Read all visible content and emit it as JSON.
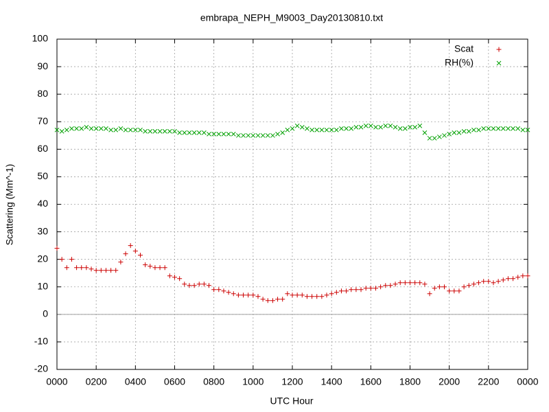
{
  "chart_data": {
    "type": "scatter",
    "title": "embrapa_NEPH_M9003_Day20130810.txt",
    "xlabel": "UTC Hour",
    "ylabel": "Scattering (Mm^-1)",
    "x": [
      0,
      0.25,
      0.5,
      0.75,
      1,
      1.25,
      1.5,
      1.75,
      2,
      2.25,
      2.5,
      2.75,
      3,
      3.25,
      3.5,
      3.75,
      4,
      4.25,
      4.5,
      4.75,
      5,
      5.25,
      5.5,
      5.75,
      6,
      6.25,
      6.5,
      6.75,
      7,
      7.25,
      7.5,
      7.75,
      8,
      8.25,
      8.5,
      8.75,
      9,
      9.25,
      9.5,
      9.75,
      10,
      10.25,
      10.5,
      10.75,
      11,
      11.25,
      11.5,
      11.75,
      12,
      12.25,
      12.5,
      12.75,
      13,
      13.25,
      13.5,
      13.75,
      14,
      14.25,
      14.5,
      14.75,
      15,
      15.25,
      15.5,
      15.75,
      16,
      16.25,
      16.5,
      16.75,
      17,
      17.25,
      17.5,
      17.75,
      18,
      18.25,
      18.5,
      18.75,
      19,
      19.25,
      19.5,
      19.75,
      20,
      20.25,
      20.5,
      20.75,
      21,
      21.25,
      21.5,
      21.75,
      22,
      22.25,
      22.5,
      22.75,
      23,
      23.25,
      23.5,
      23.75,
      24
    ],
    "series": [
      {
        "name": "Scat",
        "color": "#cc0000",
        "marker": "plus",
        "values": [
          24,
          20,
          17,
          20,
          17,
          17,
          17,
          16.5,
          16,
          16,
          16,
          16,
          16,
          19,
          22,
          25,
          23,
          21.5,
          18,
          17.5,
          17,
          17,
          17,
          14,
          13.5,
          13,
          11,
          10.5,
          10.5,
          11,
          11,
          10.5,
          9,
          9,
          8.5,
          8,
          7.5,
          7,
          7,
          7,
          7,
          6.5,
          5.5,
          5,
          5,
          5.5,
          5.5,
          7.5,
          7,
          7,
          7,
          6.5,
          6.5,
          6.5,
          6.5,
          7,
          7.5,
          8,
          8.5,
          8.5,
          9,
          9,
          9,
          9.5,
          9.5,
          9.5,
          10,
          10.5,
          10.5,
          11,
          11.5,
          11.5,
          11.5,
          11.5,
          11.5,
          11,
          7.5,
          9.5,
          10,
          10,
          8.5,
          8.5,
          8.5,
          10,
          10.5,
          11,
          11.5,
          12,
          12,
          11.5,
          12,
          12.5,
          13,
          13,
          13.5,
          14,
          14
        ]
      },
      {
        "name": "RH(%)",
        "color": "#00a000",
        "marker": "cross",
        "values": [
          67,
          66.5,
          67,
          67.5,
          67.5,
          67.5,
          68,
          67.5,
          67.5,
          67.5,
          67.5,
          67,
          67,
          67.5,
          67,
          67,
          67,
          67,
          66.5,
          66.5,
          66.5,
          66.5,
          66.5,
          66.5,
          66.5,
          66,
          66,
          66,
          66,
          66,
          66,
          65.5,
          65.5,
          65.5,
          65.5,
          65.5,
          65.5,
          65,
          65,
          65,
          65,
          65,
          65,
          65,
          65,
          65.5,
          66,
          67,
          67.5,
          68.5,
          68,
          67.5,
          67,
          67,
          67,
          67,
          67,
          67,
          67.5,
          67.5,
          67.5,
          68,
          68,
          68.5,
          68.5,
          68,
          68,
          68.5,
          68.5,
          68,
          67.5,
          67.5,
          68,
          68,
          68.5,
          66,
          64,
          64,
          64.5,
          65,
          65.5,
          66,
          66,
          66.5,
          66.5,
          67,
          67,
          67.5,
          67.5,
          67.5,
          67.5,
          67.5,
          67.5,
          67.5,
          67.5,
          67,
          67
        ]
      }
    ],
    "xlim": [
      0,
      24
    ],
    "xticks": [
      {
        "value": 0,
        "label": "0000"
      },
      {
        "value": 2,
        "label": "0200"
      },
      {
        "value": 4,
        "label": "0400"
      },
      {
        "value": 6,
        "label": "0600"
      },
      {
        "value": 8,
        "label": "0800"
      },
      {
        "value": 10,
        "label": "1000"
      },
      {
        "value": 12,
        "label": "1200"
      },
      {
        "value": 14,
        "label": "1400"
      },
      {
        "value": 16,
        "label": "1600"
      },
      {
        "value": 18,
        "label": "1800"
      },
      {
        "value": 20,
        "label": "2000"
      },
      {
        "value": 22,
        "label": "2200"
      },
      {
        "value": 24,
        "label": "0000"
      }
    ],
    "ylim": [
      -20,
      100
    ],
    "yticks": [
      -20,
      -10,
      0,
      10,
      20,
      30,
      40,
      50,
      60,
      70,
      80,
      90,
      100
    ],
    "grid": true,
    "zeroaxis": true,
    "legend": "upper right"
  }
}
